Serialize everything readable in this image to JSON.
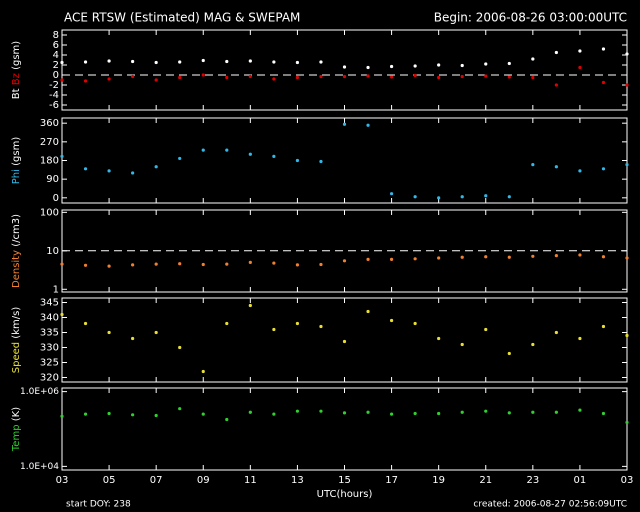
{
  "title": "ACE RTSW (Estimated) MAG & SWEPAM",
  "begin": "Begin: 2006-08-26 03:00:00UTC",
  "start_doy": "start DOY: 238",
  "created": "created: 2006-08-27 02:56:09UTC",
  "chart_data": [
    {
      "type": "scatter",
      "ylabel_unit": "(gsm)",
      "x": [
        0,
        1,
        2,
        3,
        4,
        5,
        6,
        7,
        8,
        9,
        10,
        11,
        12,
        13,
        14,
        15,
        16,
        17,
        18,
        19,
        20,
        21,
        22,
        23,
        24
      ],
      "series": [
        {
          "name": "Bt",
          "color": "#ffffff",
          "values": [
            2.5,
            2.6,
            2.8,
            2.7,
            2.5,
            2.6,
            2.9,
            2.7,
            2.8,
            2.6,
            2.5,
            2.6,
            1.6,
            1.5,
            1.7,
            1.8,
            2.0,
            1.9,
            2.2,
            2.3,
            3.2,
            4.5,
            4.8,
            5.2,
            4.2
          ]
        },
        {
          "name": "Bz",
          "color": "#e00000",
          "values": [
            -1.0,
            -1.2,
            -0.8,
            -0.3,
            -1.0,
            -0.5,
            0.0,
            -0.5,
            -0.3,
            -0.8,
            -0.5,
            -0.3,
            -0.3,
            -0.2,
            -0.4,
            -0.1,
            -0.5,
            -0.3,
            -0.2,
            -0.4,
            -0.5,
            -2.0,
            1.5,
            -1.5,
            -2.0
          ]
        }
      ],
      "xlim": [
        0,
        24
      ],
      "ylim": [
        -7,
        9
      ],
      "yticks": [
        8,
        6,
        4,
        2,
        0,
        -2,
        -4,
        -6
      ],
      "reference_line": 0
    },
    {
      "type": "scatter",
      "ylabel_unit": "(gsm)",
      "x": [
        0,
        1,
        2,
        3,
        4,
        5,
        6,
        7,
        8,
        9,
        10,
        11,
        12,
        13,
        14,
        15,
        16,
        17,
        18,
        19,
        20,
        21,
        22,
        23,
        24
      ],
      "series": [
        {
          "name": "Phi",
          "color": "#30b8e8",
          "values": [
            200,
            140,
            130,
            120,
            150,
            190,
            230,
            230,
            210,
            200,
            180,
            175,
            355,
            350,
            20,
            5,
            0,
            5,
            10,
            5,
            160,
            150,
            130,
            140,
            160
          ]
        }
      ],
      "xlim": [
        0,
        24
      ],
      "ylim": [
        -25,
        385
      ],
      "yticks": [
        0,
        90,
        180,
        270,
        360
      ]
    },
    {
      "type": "scatter",
      "ylabel_unit": "(/cm3)",
      "log": true,
      "x": [
        0,
        1,
        2,
        3,
        4,
        5,
        6,
        7,
        8,
        9,
        10,
        11,
        12,
        13,
        14,
        15,
        16,
        17,
        18,
        19,
        20,
        21,
        22,
        23,
        24
      ],
      "series": [
        {
          "name": "Density",
          "color": "#f08030",
          "values": [
            4.5,
            4.2,
            4.0,
            4.3,
            4.5,
            4.6,
            4.4,
            4.5,
            5.0,
            4.8,
            4.3,
            4.4,
            5.5,
            6.0,
            6.0,
            6.2,
            6.5,
            6.8,
            7.0,
            6.8,
            7.2,
            7.5,
            7.8,
            7.0,
            6.5
          ]
        }
      ],
      "xlim": [
        0,
        24
      ],
      "ylim": [
        0.85,
        115
      ],
      "yticks": [
        1,
        10,
        100
      ],
      "reference_line": 10
    },
    {
      "type": "scatter",
      "ylabel_unit": "(km/s)",
      "x": [
        0,
        1,
        2,
        3,
        4,
        5,
        6,
        7,
        8,
        9,
        10,
        11,
        12,
        13,
        14,
        15,
        16,
        17,
        18,
        19,
        20,
        21,
        22,
        23,
        24
      ],
      "series": [
        {
          "name": "Speed",
          "color": "#e8e030",
          "values": [
            341,
            338,
            335,
            333,
            335,
            330,
            322,
            338,
            344,
            336,
            338,
            337,
            332,
            342,
            339,
            338,
            333,
            331,
            336,
            328,
            331,
            335,
            333,
            337,
            334
          ]
        }
      ],
      "xlim": [
        0,
        24
      ],
      "ylim": [
        318.5,
        346.5
      ],
      "yticks": [
        320,
        325,
        330,
        335,
        340,
        345
      ]
    },
    {
      "type": "scatter",
      "ylabel_unit": "(K)",
      "log": true,
      "x": [
        0,
        1,
        2,
        3,
        4,
        5,
        6,
        7,
        8,
        9,
        10,
        11,
        12,
        13,
        14,
        15,
        16,
        17,
        18,
        19,
        20,
        21,
        22,
        23,
        24
      ],
      "series": [
        {
          "name": "Temp",
          "color": "#30d030",
          "values": [
            220000,
            250000,
            260000,
            240000,
            230000,
            350000,
            250000,
            180000,
            280000,
            250000,
            300000,
            300000,
            270000,
            280000,
            250000,
            260000,
            260000,
            280000,
            300000,
            270000,
            280000,
            280000,
            320000,
            260000,
            150000
          ]
        }
      ],
      "xlim": [
        0,
        24
      ],
      "ylim": [
        8000,
        1250000
      ],
      "yticks": [
        {
          "value": 10000,
          "label": "1.0E+04"
        },
        {
          "value": 1000000,
          "label": "1.0E+06"
        }
      ],
      "xlabel": "UTC(hours)",
      "xticks": [
        {
          "value": 0,
          "label": "03"
        },
        {
          "value": 2,
          "label": "05"
        },
        {
          "value": 4,
          "label": "07"
        },
        {
          "value": 6,
          "label": "09"
        },
        {
          "value": 8,
          "label": "11"
        },
        {
          "value": 10,
          "label": "13"
        },
        {
          "value": 12,
          "label": "15"
        },
        {
          "value": 14,
          "label": "17"
        },
        {
          "value": 16,
          "label": "19"
        },
        {
          "value": 18,
          "label": "21"
        },
        {
          "value": 20,
          "label": "23"
        },
        {
          "value": 22,
          "label": "01"
        },
        {
          "value": 24,
          "label": "03"
        }
      ]
    }
  ]
}
